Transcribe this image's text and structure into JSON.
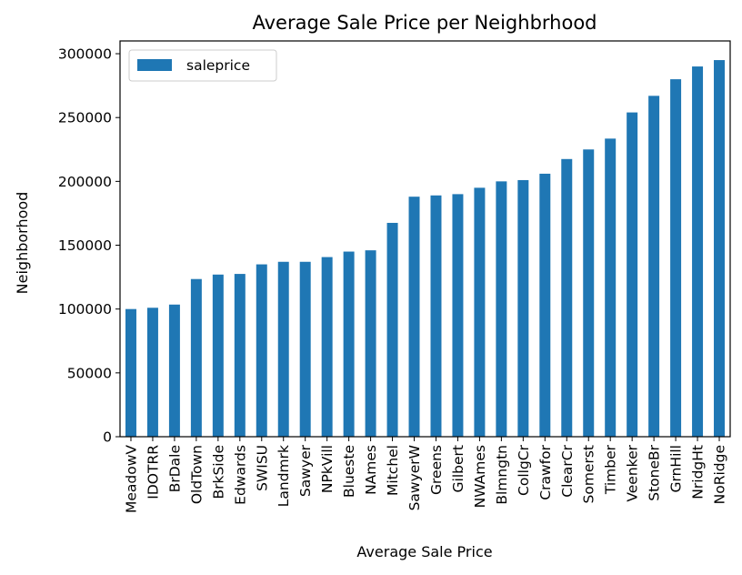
{
  "chart_data": {
    "type": "bar",
    "title": "Average Sale Price per Neighbrhood",
    "xlabel": "Average Sale Price",
    "ylabel": "Neighborhood",
    "ylim": [
      0,
      310000
    ],
    "yticks": [
      0,
      50000,
      100000,
      150000,
      200000,
      250000,
      300000
    ],
    "yticklabels": [
      "0",
      "50000",
      "100000",
      "150000",
      "200000",
      "250000",
      "300000"
    ],
    "grid": false,
    "legend_position": "top-left",
    "categories": [
      "MeadowV",
      "IDOTRR",
      "BrDale",
      "OldTown",
      "BrkSide",
      "Edwards",
      "SWISU",
      "Landmrk",
      "Sawyer",
      "NPkVill",
      "Blueste",
      "NAmes",
      "Mitchel",
      "SawyerW",
      "Greens",
      "Gilbert",
      "NWAmes",
      "Blmngtn",
      "CollgCr",
      "Crawfor",
      "ClearCr",
      "Somerst",
      "Timber",
      "Veenker",
      "StoneBr",
      "GrnHill",
      "NridgHt",
      "NoRidge"
    ],
    "series": [
      {
        "name": "saleprice",
        "color": "#1f77b4",
        "values": [
          100000,
          101000,
          103500,
          123500,
          127000,
          127500,
          135000,
          137000,
          137000,
          140700,
          145000,
          146000,
          167500,
          188000,
          189000,
          190000,
          195000,
          200000,
          201000,
          206000,
          217500,
          225000,
          233500,
          254000,
          267000,
          280000,
          290000,
          295000
        ]
      }
    ]
  }
}
